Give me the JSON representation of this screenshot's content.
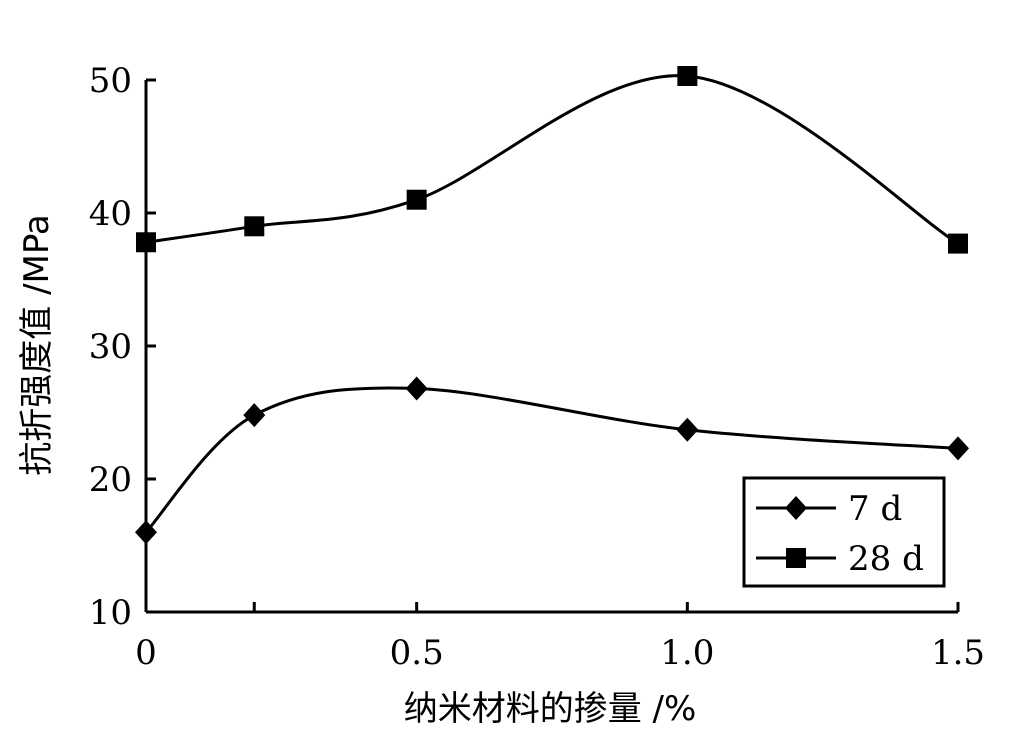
{
  "chart_data": {
    "type": "line",
    "title": "",
    "xlabel": "纳米材料的掺量 /%",
    "ylabel": "抗折强度值 /MPa",
    "xlim": [
      0,
      1.5
    ],
    "ylim": [
      10,
      50
    ],
    "xticks": [
      0,
      0.5,
      1.0,
      1.5
    ],
    "xtick_labels": [
      "0",
      "0.5",
      "1.0",
      "1.5"
    ],
    "yticks": [
      10,
      20,
      30,
      40,
      50
    ],
    "ytick_labels": [
      "10",
      "20",
      "30",
      "40",
      "50"
    ],
    "minor_xticks": [
      0.2
    ],
    "grid": false,
    "legend_position": "bottom-right",
    "series": [
      {
        "name": "7 d",
        "marker": "diamond",
        "color": "#000000",
        "x": [
          0,
          0.2,
          0.5,
          1.0,
          1.5
        ],
        "y": [
          16.0,
          24.8,
          26.8,
          23.7,
          22.3
        ]
      },
      {
        "name": "28 d",
        "marker": "square",
        "color": "#000000",
        "x": [
          0,
          0.2,
          0.5,
          1.0,
          1.5
        ],
        "y": [
          37.8,
          39.0,
          41.0,
          50.3,
          37.7
        ]
      }
    ]
  }
}
